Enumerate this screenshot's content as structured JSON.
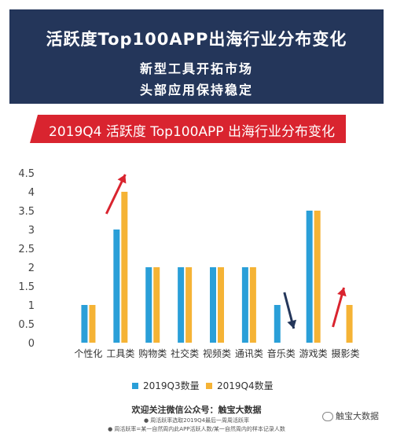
{
  "header": {
    "title": "活跃度Top100APP出海行业分布变化",
    "line1": "新型工具开拓市场",
    "line2": "头部应用保持稳定"
  },
  "banner": {
    "text": "2019Q4 活跃度 Top100APP 出海行业分布变化"
  },
  "footer": {
    "follow": "欢迎关注微信公众号：触宝大数据",
    "note1": "● 周活跃率选取2019Q4最后一周周活跃率",
    "note2": "● 周活跃率=某一自然周内此APP活跃人数/某一自然周内的样本记录人数"
  },
  "watermark": "触宝大数据",
  "colors": {
    "header_bg": "#24365a",
    "banner_bg": "#d9242f",
    "q3": "#2a9fd8",
    "q4": "#f5b335",
    "arrow_up": "#d9242f",
    "arrow_down": "#24365a"
  },
  "chart_data": {
    "type": "bar",
    "categories": [
      "个性化",
      "工具类",
      "购物类",
      "社交类",
      "视频类",
      "通讯类",
      "音乐类",
      "游戏类",
      "摄影类"
    ],
    "series": [
      {
        "name": "2019Q3数量",
        "values": [
          1,
          3,
          2,
          2,
          2,
          2,
          1,
          3.5,
          0
        ]
      },
      {
        "name": "2019Q4数量",
        "values": [
          1,
          4,
          2,
          2,
          2,
          2,
          0,
          3.5,
          1
        ]
      }
    ],
    "yticks": [
      "0",
      "0.5",
      "1",
      "1.5",
      "2",
      "2.5",
      "3",
      "3.5",
      "4",
      "4.5"
    ],
    "ylim": [
      0,
      4.5
    ],
    "legend_position": "bottom",
    "grid": false,
    "annotations": [
      {
        "type": "arrow-up",
        "category": "工具类"
      },
      {
        "type": "arrow-down",
        "category": "音乐类"
      },
      {
        "type": "arrow-up",
        "category": "摄影类"
      }
    ]
  }
}
